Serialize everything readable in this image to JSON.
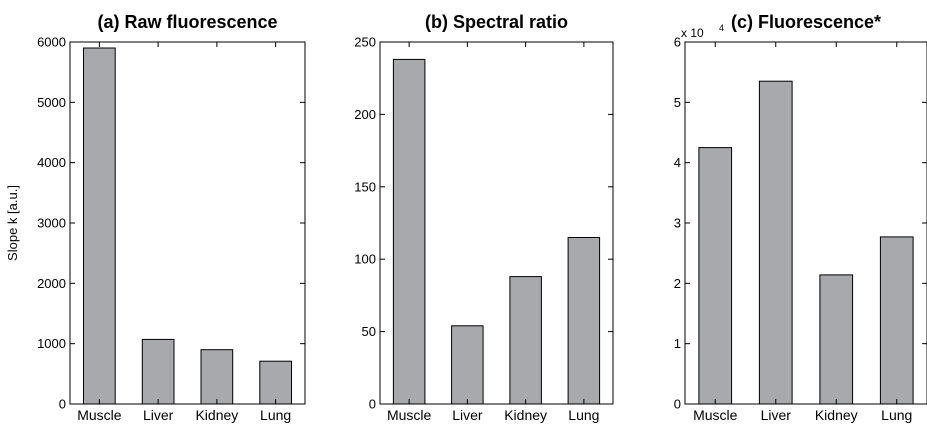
{
  "chart_data": [
    {
      "type": "bar",
      "title": "(a) Raw fluorescence",
      "ylabel": "Slope k [a.u.]",
      "xlabel": "",
      "categories": [
        "Muscle",
        "Liver",
        "Kidney",
        "Lung"
      ],
      "values": [
        5900,
        1070,
        900,
        710
      ],
      "ylim": [
        0,
        6000
      ],
      "yticks": [
        0,
        1000,
        2000,
        3000,
        4000,
        5000,
        6000
      ],
      "ytick_labels": [
        "0",
        "1000",
        "2000",
        "3000",
        "4000",
        "5000",
        "6000"
      ],
      "bar_color": "#a8a9ad",
      "grid": false
    },
    {
      "type": "bar",
      "title": "(b) Spectral ratio",
      "ylabel": "",
      "xlabel": "",
      "categories": [
        "Muscle",
        "Liver",
        "Kidney",
        "Lung"
      ],
      "values": [
        238,
        54,
        88,
        115
      ],
      "ylim": [
        0,
        250
      ],
      "yticks": [
        0,
        50,
        100,
        150,
        200,
        250
      ],
      "ytick_labels": [
        "0",
        "50",
        "100",
        "150",
        "200",
        "250"
      ],
      "bar_color": "#a8a9ad",
      "grid": false
    },
    {
      "type": "bar",
      "title": "(c) Fluorescence*",
      "ylabel": "",
      "xlabel": "",
      "categories": [
        "Muscle",
        "Liver",
        "Kidney",
        "Lung"
      ],
      "values": [
        42500,
        53500,
        21400,
        27700
      ],
      "ylim": [
        0,
        60000
      ],
      "yticks": [
        0,
        10000,
        20000,
        30000,
        40000,
        50000,
        60000
      ],
      "ytick_labels": [
        "0",
        "1",
        "2",
        "3",
        "4",
        "5",
        "6"
      ],
      "y_multiplier": "x 10",
      "y_multiplier_exp": "4",
      "bar_color": "#a8a9ad",
      "grid": false
    }
  ]
}
